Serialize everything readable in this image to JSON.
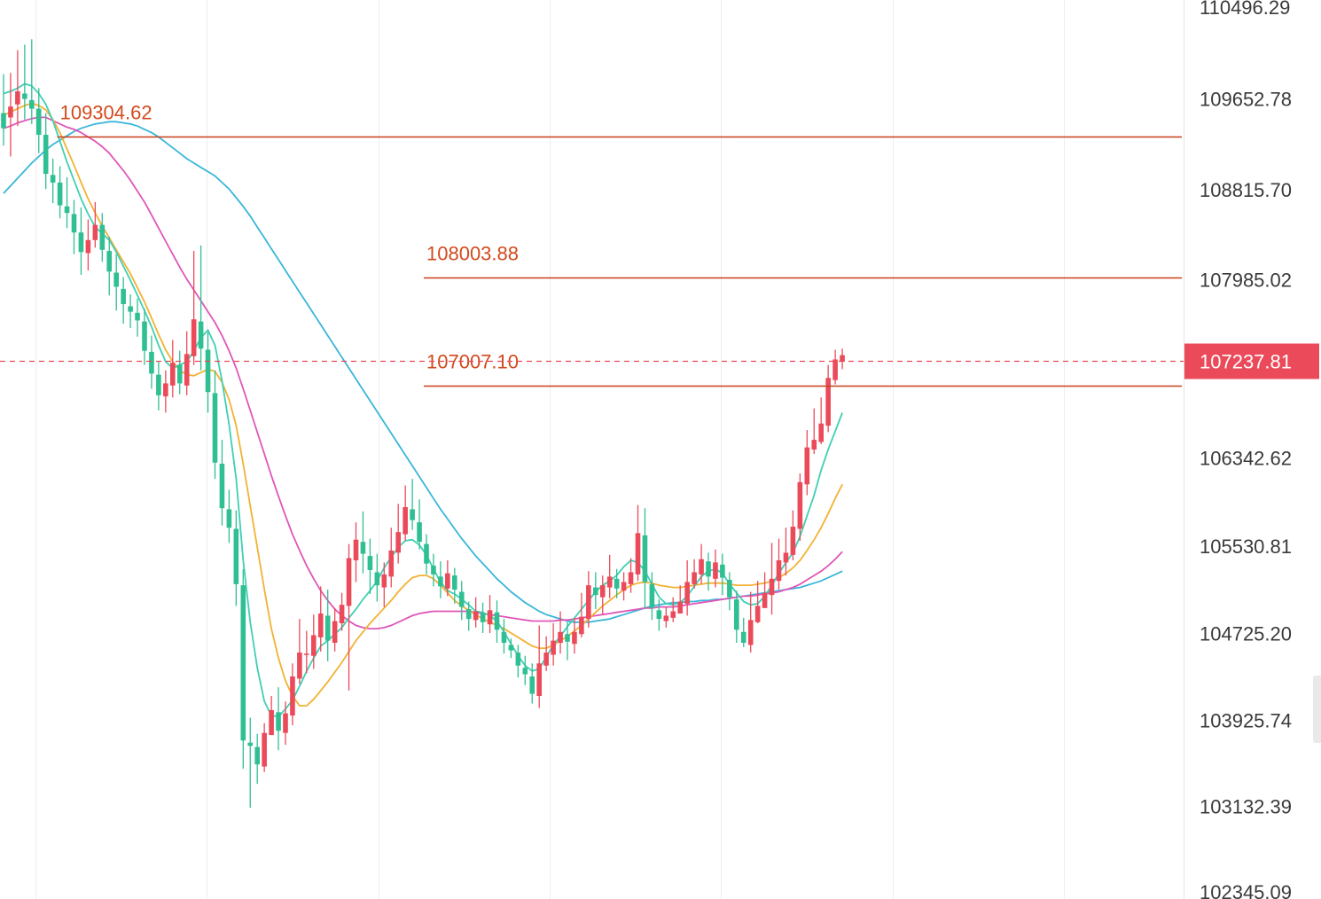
{
  "chart_data": {
    "type": "candlestick",
    "y_axis": {
      "position": "right",
      "ylim": [
        102345.09,
        110496.29
      ],
      "ticks": [
        "110496.29",
        "109652.78",
        "108815.70",
        "107985.02",
        "106342.62",
        "105530.81",
        "104725.20",
        "103925.74",
        "103132.39",
        "102345.09"
      ]
    },
    "current_price": {
      "label": "107237.81",
      "value": 107237.81,
      "color": "#eb4a5a"
    },
    "levels": [
      {
        "label": "109304.62",
        "value": 109304.62,
        "x_start_index": 8
      },
      {
        "label": "108003.88",
        "value": 108003.88,
        "x_start_index": 60
      },
      {
        "label": "107007.10",
        "value": 107007.1,
        "x_start_index": 60
      }
    ],
    "level_color": "#c8401a",
    "colors": {
      "up": "#eb4a5a",
      "down": "#2fbf92",
      "ma_fast": "#3fcfb4",
      "ma_mid": "#f2b233",
      "ma_slow": "#e056b8",
      "ma_long": "#3ab6d9",
      "grid": "#eeeeee"
    },
    "candles": [
      [
        109520,
        109380,
        109880,
        109220
      ],
      [
        109480,
        109580,
        109890,
        109120
      ],
      [
        109600,
        109720,
        110100,
        109400
      ],
      [
        109700,
        109650,
        110150,
        109460
      ],
      [
        109640,
        109560,
        110200,
        109420
      ],
      [
        109560,
        109320,
        109750,
        109150
      ],
      [
        109320,
        108960,
        109520,
        108820
      ],
      [
        108950,
        108880,
        109100,
        108690
      ],
      [
        108880,
        108670,
        109030,
        108550
      ],
      [
        108660,
        108600,
        108930,
        108460
      ],
      [
        108590,
        108420,
        108720,
        108220
      ],
      [
        108420,
        108240,
        108650,
        108030
      ],
      [
        108230,
        108350,
        108540,
        108070
      ],
      [
        108350,
        108490,
        108700,
        108280
      ],
      [
        108490,
        108260,
        108600,
        108150
      ],
      [
        108250,
        108060,
        108380,
        107840
      ],
      [
        108050,
        107920,
        108220,
        107700
      ],
      [
        107900,
        107760,
        108010,
        107580
      ],
      [
        107740,
        107690,
        107850,
        107540
      ],
      [
        107680,
        107610,
        107810,
        107460
      ],
      [
        107600,
        107330,
        107720,
        107200
      ],
      [
        107320,
        107120,
        107470,
        106980
      ],
      [
        107110,
        106920,
        107230,
        106780
      ],
      [
        106910,
        107030,
        107150,
        106760
      ],
      [
        107010,
        107220,
        107430,
        106900
      ],
      [
        107200,
        107030,
        107330,
        106930
      ],
      [
        107010,
        107300,
        107510,
        106920
      ],
      [
        107280,
        107620,
        108250,
        107200
      ],
      [
        107600,
        107350,
        108300,
        107150
      ],
      [
        107340,
        106950,
        107500,
        106760
      ],
      [
        106940,
        106300,
        107150,
        106150
      ],
      [
        106290,
        105880,
        106510,
        105720
      ],
      [
        105870,
        105700,
        106050,
        105560
      ],
      [
        105690,
        105180,
        105860,
        104980
      ],
      [
        105170,
        103740,
        105320,
        103480
      ],
      [
        103720,
        103690,
        103950,
        103120
      ],
      [
        103680,
        103520,
        103800,
        103340
      ],
      [
        103500,
        103810,
        103900,
        103450
      ],
      [
        103790,
        104020,
        104150,
        103840
      ],
      [
        104000,
        103830,
        104230,
        103650
      ],
      [
        103810,
        103990,
        104100,
        103700
      ],
      [
        103970,
        104330,
        104450,
        103880
      ],
      [
        104310,
        104550,
        104860,
        104260
      ],
      [
        104530,
        104540,
        104750,
        104360
      ],
      [
        104520,
        104710,
        104900,
        104400
      ],
      [
        104690,
        104910,
        105160,
        104560
      ],
      [
        104890,
        104660,
        105130,
        104470
      ],
      [
        104640,
        104840,
        104960,
        104560
      ],
      [
        104820,
        104990,
        105100,
        104750
      ],
      [
        104980,
        105420,
        105550,
        104200
      ],
      [
        105400,
        105590,
        105750,
        105200
      ],
      [
        105570,
        105460,
        105850,
        105280
      ],
      [
        105440,
        105310,
        105600,
        105090
      ],
      [
        105290,
        105170,
        105460,
        105020
      ],
      [
        105150,
        105270,
        105380,
        104970
      ],
      [
        105250,
        105490,
        105700,
        105150
      ],
      [
        105470,
        105660,
        105920,
        105370
      ],
      [
        105640,
        105890,
        106090,
        105580
      ],
      [
        105870,
        105770,
        106150,
        105680
      ],
      [
        105750,
        105570,
        105960,
        105500
      ],
      [
        105550,
        105370,
        105640,
        105270
      ],
      [
        105350,
        105270,
        105460,
        105160
      ],
      [
        105250,
        105160,
        105390,
        105050
      ],
      [
        105140,
        105280,
        105400,
        105070
      ],
      [
        105260,
        105130,
        105330,
        105000
      ],
      [
        105110,
        104970,
        105210,
        104850
      ],
      [
        104950,
        104860,
        105020,
        104750
      ],
      [
        104850,
        104930,
        105060,
        104780
      ],
      [
        104910,
        104830,
        105010,
        104730
      ],
      [
        104810,
        104940,
        105080,
        104730
      ],
      [
        104920,
        104760,
        105030,
        104640
      ],
      [
        104740,
        104640,
        104860,
        104540
      ],
      [
        104620,
        104570,
        104680,
        104500
      ],
      [
        104550,
        104430,
        104620,
        104320
      ],
      [
        104410,
        104350,
        104520,
        104250
      ],
      [
        104330,
        104170,
        104450,
        104080
      ],
      [
        104150,
        104450,
        104800,
        104040
      ],
      [
        104430,
        104550,
        104700,
        104380
      ],
      [
        104530,
        104660,
        104820,
        104430
      ],
      [
        104640,
        104740,
        104930,
        104540
      ],
      [
        104720,
        104650,
        104830,
        104480
      ],
      [
        104630,
        104740,
        104870,
        104540
      ],
      [
        104720,
        104880,
        105100,
        104690
      ],
      [
        104860,
        105170,
        105300,
        104780
      ],
      [
        105150,
        105080,
        105290,
        104950
      ],
      [
        105060,
        105170,
        105260,
        104900
      ],
      [
        105150,
        105250,
        105450,
        105050
      ],
      [
        105230,
        105140,
        105320,
        105050
      ],
      [
        105120,
        105200,
        105290,
        105030
      ],
      [
        105180,
        105290,
        105420,
        105100
      ],
      [
        105270,
        105650,
        105910,
        105210
      ],
      [
        105630,
        105200,
        105880,
        104950
      ],
      [
        105180,
        104960,
        105290,
        104850
      ],
      [
        104940,
        104860,
        105040,
        104750
      ],
      [
        104840,
        104890,
        104970,
        104780
      ],
      [
        104870,
        104930,
        105060,
        104830
      ],
      [
        104910,
        105020,
        105170,
        104910
      ],
      [
        105000,
        105200,
        105400,
        104890
      ],
      [
        105180,
        105290,
        105410,
        105140
      ],
      [
        105270,
        105410,
        105550,
        105180
      ],
      [
        105390,
        105250,
        105470,
        105120
      ],
      [
        105230,
        105380,
        105500,
        105150
      ],
      [
        105360,
        105240,
        105460,
        105080
      ],
      [
        105220,
        105060,
        105290,
        104940
      ],
      [
        105040,
        104760,
        105120,
        104640
      ],
      [
        104740,
        104640,
        104870,
        104600
      ],
      [
        104620,
        104850,
        105110,
        104550
      ],
      [
        104830,
        104980,
        105210,
        104820
      ],
      [
        104960,
        105100,
        105290,
        105000
      ],
      [
        105080,
        105230,
        105560,
        104900
      ],
      [
        105210,
        105400,
        105600,
        105130
      ],
      [
        105380,
        105470,
        105700,
        105260
      ],
      [
        105450,
        105710,
        105860,
        105400
      ],
      [
        105690,
        106120,
        106200,
        105580
      ],
      [
        106100,
        106440,
        106600,
        106000
      ],
      [
        106420,
        106510,
        106800,
        106380
      ],
      [
        106490,
        106660,
        106900,
        106470
      ],
      [
        106640,
        107080,
        107200,
        106580
      ],
      [
        107060,
        107250,
        107340,
        107020
      ],
      [
        107230,
        107290,
        107350,
        107160
      ]
    ],
    "ma_fast": [
      109700,
      109720,
      109750,
      109790,
      109770,
      109700,
      109600,
      109450,
      109260,
      109070,
      108900,
      108730,
      108590,
      108470,
      108410,
      108350,
      108240,
      108110,
      107980,
      107840,
      107700,
      107550,
      107380,
      107230,
      107170,
      107200,
      107230,
      107330,
      107450,
      107520,
      107380,
      107050,
      106650,
      106150,
      105400,
      104830,
      104410,
      104100,
      103970,
      103960,
      104030,
      104110,
      104240,
      104380,
      104500,
      104610,
      104660,
      104720,
      104780,
      104870,
      104950,
      105040,
      105120,
      105210,
      105330,
      105430,
      105520,
      105580,
      105590,
      105540,
      105450,
      105320,
      105200,
      105120,
      105090,
      105040,
      104990,
      104930,
      104920,
      104890,
      104840,
      104740,
      104630,
      104520,
      104430,
      104380,
      104400,
      104510,
      104620,
      104700,
      104790,
      104870,
      104950,
      105030,
      105110,
      105170,
      105210,
      105260,
      105340,
      105400,
      105380,
      105300,
      105180,
      105060,
      105000,
      104990,
      105010,
      105070,
      105160,
      105250,
      105300,
      105320,
      105280,
      105180,
      105100,
      105020,
      104990,
      105000,
      105070,
      105170,
      105280,
      105380,
      105470,
      105620,
      105810,
      106000,
      106230,
      106420,
      106590,
      106760
    ],
    "ma_mid": [
      109500,
      109530,
      109560,
      109590,
      109610,
      109590,
      109550,
      109460,
      109340,
      109190,
      109040,
      108880,
      108730,
      108600,
      108480,
      108370,
      108260,
      108150,
      108040,
      107910,
      107780,
      107630,
      107480,
      107340,
      107230,
      107150,
      107110,
      107100,
      107130,
      107160,
      107140,
      107040,
      106880,
      106640,
      106290,
      105900,
      105520,
      105130,
      104770,
      104500,
      104290,
      104150,
      104060,
      104060,
      104120,
      104200,
      104280,
      104370,
      104460,
      104560,
      104660,
      104740,
      104820,
      104890,
      104960,
      105030,
      105110,
      105180,
      105240,
      105260,
      105260,
      105230,
      105170,
      105100,
      105030,
      104980,
      104940,
      104900,
      104860,
      104830,
      104800,
      104770,
      104730,
      104690,
      104650,
      104610,
      104590,
      104590,
      104620,
      104660,
      104700,
      104750,
      104800,
      104860,
      104920,
      104980,
      105030,
      105080,
      105130,
      105170,
      105190,
      105200,
      105190,
      105170,
      105160,
      105150,
      105150,
      105160,
      105170,
      105180,
      105190,
      105190,
      105190,
      105180,
      105170,
      105170,
      105170,
      105180,
      105190,
      105210,
      105240,
      105280,
      105330,
      105400,
      105490,
      105590,
      105700,
      105830,
      105970,
      106100
    ],
    "ma_slow": [
      109380,
      109400,
      109430,
      109450,
      109470,
      109480,
      109480,
      109450,
      109420,
      109390,
      109370,
      109340,
      109300,
      109260,
      109210,
      109150,
      109070,
      108990,
      108900,
      108800,
      108700,
      108580,
      108460,
      108340,
      108220,
      108100,
      107990,
      107890,
      107790,
      107690,
      107590,
      107470,
      107330,
      107170,
      106980,
      106780,
      106580,
      106380,
      106180,
      105990,
      105810,
      105640,
      105490,
      105350,
      105230,
      105120,
      105030,
      104950,
      104890,
      104840,
      104800,
      104780,
      104770,
      104770,
      104780,
      104800,
      104830,
      104860,
      104890,
      104910,
      104920,
      104930,
      104930,
      104930,
      104930,
      104930,
      104930,
      104920,
      104910,
      104900,
      104890,
      104880,
      104870,
      104860,
      104850,
      104840,
      104840,
      104840,
      104840,
      104850,
      104850,
      104860,
      104870,
      104880,
      104890,
      104900,
      104910,
      104920,
      104930,
      104940,
      104950,
      104960,
      104960,
      104970,
      104970,
      104970,
      104980,
      104990,
      105000,
      105010,
      105020,
      105030,
      105040,
      105050,
      105060,
      105070,
      105070,
      105080,
      105090,
      105100,
      105110,
      105130,
      105150,
      105180,
      105220,
      105260,
      105300,
      105350,
      105410,
      105480
    ],
    "ma_long": [
      108780,
      108850,
      108920,
      108990,
      109060,
      109120,
      109180,
      109230,
      109270,
      109310,
      109350,
      109380,
      109400,
      109420,
      109430,
      109440,
      109440,
      109430,
      109420,
      109400,
      109370,
      109340,
      109300,
      109250,
      109200,
      109150,
      109100,
      109060,
      109020,
      108980,
      108940,
      108880,
      108820,
      108740,
      108660,
      108570,
      108470,
      108370,
      108270,
      108170,
      108070,
      107970,
      107870,
      107770,
      107670,
      107570,
      107470,
      107370,
      107270,
      107170,
      107070,
      106970,
      106870,
      106770,
      106670,
      106570,
      106470,
      106370,
      106270,
      106170,
      106070,
      105970,
      105870,
      105780,
      105690,
      105600,
      105520,
      105440,
      105370,
      105300,
      105230,
      105170,
      105110,
      105060,
      105010,
      104970,
      104930,
      104900,
      104880,
      104860,
      104840,
      104830,
      104830,
      104830,
      104840,
      104850,
      104860,
      104880,
      104900,
      104920,
      104940,
      104960,
      104980,
      104990,
      105000,
      105010,
      105010,
      105020,
      105020,
      105030,
      105030,
      105040,
      105040,
      105050,
      105060,
      105070,
      105080,
      105090,
      105100,
      105110,
      105120,
      105130,
      105140,
      105150,
      105170,
      105190,
      105210,
      105240,
      105270,
      105300
    ]
  }
}
